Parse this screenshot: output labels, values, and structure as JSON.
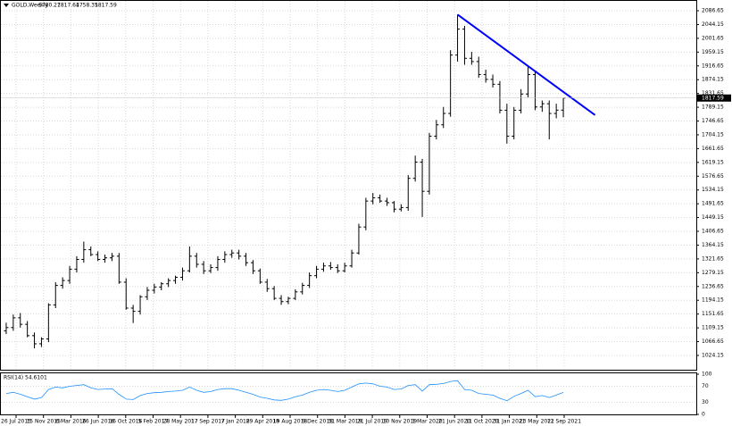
{
  "chart_data": {
    "type": "ohlc",
    "title": "GOLD,Weekly",
    "color": "#000000",
    "grid": true,
    "open": [
      1100,
      1110,
      1140,
      1120,
      1085,
      1060,
      1075,
      1180,
      1240,
      1255,
      1290,
      1320,
      1350,
      1335,
      1320,
      1325,
      1330,
      1250,
      1170,
      1160,
      1205,
      1225,
      1235,
      1245,
      1255,
      1265,
      1285,
      1330,
      1305,
      1285,
      1295,
      1320,
      1335,
      1340,
      1330,
      1310,
      1285,
      1250,
      1230,
      1200,
      1190,
      1200,
      1220,
      1240,
      1270,
      1290,
      1300,
      1295,
      1285,
      1300,
      1340,
      1420,
      1500,
      1510,
      1500,
      1495,
      1475,
      1480,
      1570,
      1620,
      1530,
      1700,
      1735,
      1770,
      1950,
      2030,
      1940,
      1930,
      1890,
      1875,
      1860,
      1780,
      1700,
      1780,
      1830,
      1890,
      1790,
      1800,
      1770,
      1780.27
    ],
    "high": [
      1125,
      1150,
      1155,
      1130,
      1095,
      1080,
      1185,
      1250,
      1265,
      1300,
      1330,
      1375,
      1360,
      1345,
      1335,
      1340,
      1340,
      1262,
      1180,
      1210,
      1235,
      1245,
      1250,
      1262,
      1270,
      1295,
      1360,
      1340,
      1315,
      1305,
      1330,
      1345,
      1350,
      1350,
      1340,
      1318,
      1292,
      1260,
      1238,
      1210,
      1205,
      1228,
      1248,
      1280,
      1300,
      1310,
      1312,
      1305,
      1310,
      1350,
      1430,
      1510,
      1525,
      1520,
      1510,
      1500,
      1490,
      1580,
      1640,
      1630,
      1710,
      1750,
      1790,
      1965,
      2075,
      2040,
      1960,
      1945,
      1905,
      1890,
      1870,
      1800,
      1790,
      1845,
      1916,
      1900,
      1810,
      1810,
      1800,
      1817.64
    ],
    "low": [
      1090,
      1100,
      1110,
      1080,
      1046,
      1050,
      1065,
      1170,
      1230,
      1245,
      1280,
      1310,
      1330,
      1315,
      1310,
      1315,
      1245,
      1165,
      1124,
      1150,
      1195,
      1215,
      1225,
      1235,
      1245,
      1255,
      1280,
      1295,
      1275,
      1278,
      1285,
      1310,
      1325,
      1320,
      1300,
      1275,
      1245,
      1220,
      1195,
      1180,
      1182,
      1195,
      1212,
      1232,
      1262,
      1282,
      1288,
      1278,
      1280,
      1295,
      1335,
      1410,
      1490,
      1495,
      1485,
      1465,
      1468,
      1470,
      1560,
      1451,
      1520,
      1690,
      1725,
      1760,
      1930,
      1920,
      1920,
      1880,
      1865,
      1850,
      1770,
      1677,
      1690,
      1770,
      1820,
      1780,
      1775,
      1690,
      1755,
      1758.35
    ],
    "close": [
      1110,
      1140,
      1120,
      1085,
      1060,
      1075,
      1180,
      1240,
      1255,
      1290,
      1320,
      1350,
      1335,
      1320,
      1325,
      1330,
      1250,
      1170,
      1160,
      1205,
      1225,
      1235,
      1245,
      1255,
      1265,
      1285,
      1330,
      1305,
      1285,
      1295,
      1320,
      1335,
      1340,
      1330,
      1310,
      1285,
      1250,
      1230,
      1200,
      1190,
      1200,
      1220,
      1240,
      1270,
      1290,
      1300,
      1295,
      1285,
      1300,
      1340,
      1420,
      1500,
      1510,
      1500,
      1495,
      1475,
      1480,
      1570,
      1620,
      1530,
      1700,
      1735,
      1770,
      1950,
      2030,
      1940,
      1930,
      1890,
      1875,
      1860,
      1780,
      1700,
      1780,
      1830,
      1890,
      1790,
      1800,
      1770,
      1780.27,
      1817.59
    ],
    "ylim": [
      980,
      2117
    ],
    "yticks": [
      2086.65,
      2044.15,
      2001.65,
      1959.15,
      1916.65,
      1874.15,
      1831.65,
      1789.15,
      1746.65,
      1704.15,
      1661.65,
      1619.15,
      1576.65,
      1534.15,
      1491.65,
      1449.15,
      1406.65,
      1364.15,
      1321.65,
      1279.15,
      1236.65,
      1194.15,
      1151.65,
      1109.15,
      1066.65,
      1024.15
    ],
    "x_labels": [
      "26 Jul 2015",
      "15 Nov 2015",
      "6 Mar 2016",
      "26 Jun 2016",
      "16 Oct 2016",
      "5 Feb 2017",
      "28 May 2017",
      "17 Sep 2017",
      "7 Jan 2018",
      "29 Apr 2018",
      "19 Aug 2018",
      "9 Dec 2018",
      "31 Mar 2019",
      "21 Jul 2019",
      "10 Nov 2019",
      "1 Mar 2020",
      "21 Jun 2020",
      "11 Oct 2020",
      "31 Jan 2021",
      "23 May 2021",
      "12 Sep 2021"
    ],
    "trendline": {
      "color": "#0000ff",
      "values": [
        2075,
        1765
      ]
    },
    "rsi": {
      "title": "RSI(14)",
      "color": "#1e90ff",
      "ylim": [
        0,
        100
      ],
      "yticks": [
        100,
        70,
        30,
        0
      ],
      "values": [
        52,
        55,
        50,
        44,
        38,
        42,
        62,
        68,
        66,
        70,
        72,
        74,
        66,
        62,
        63,
        64,
        50,
        38,
        37,
        47,
        52,
        54,
        55,
        57,
        58,
        60,
        68,
        60,
        55,
        57,
        62,
        64,
        64,
        60,
        55,
        50,
        43,
        40,
        36,
        35,
        38,
        44,
        48,
        55,
        60,
        62,
        60,
        57,
        60,
        68,
        76,
        78,
        76,
        70,
        68,
        62,
        63,
        72,
        74,
        58,
        74,
        75,
        77,
        82,
        84,
        62,
        60,
        52,
        50,
        48,
        40,
        34,
        45,
        52,
        60,
        44,
        47,
        42,
        48,
        54.6101
      ]
    }
  }
}
